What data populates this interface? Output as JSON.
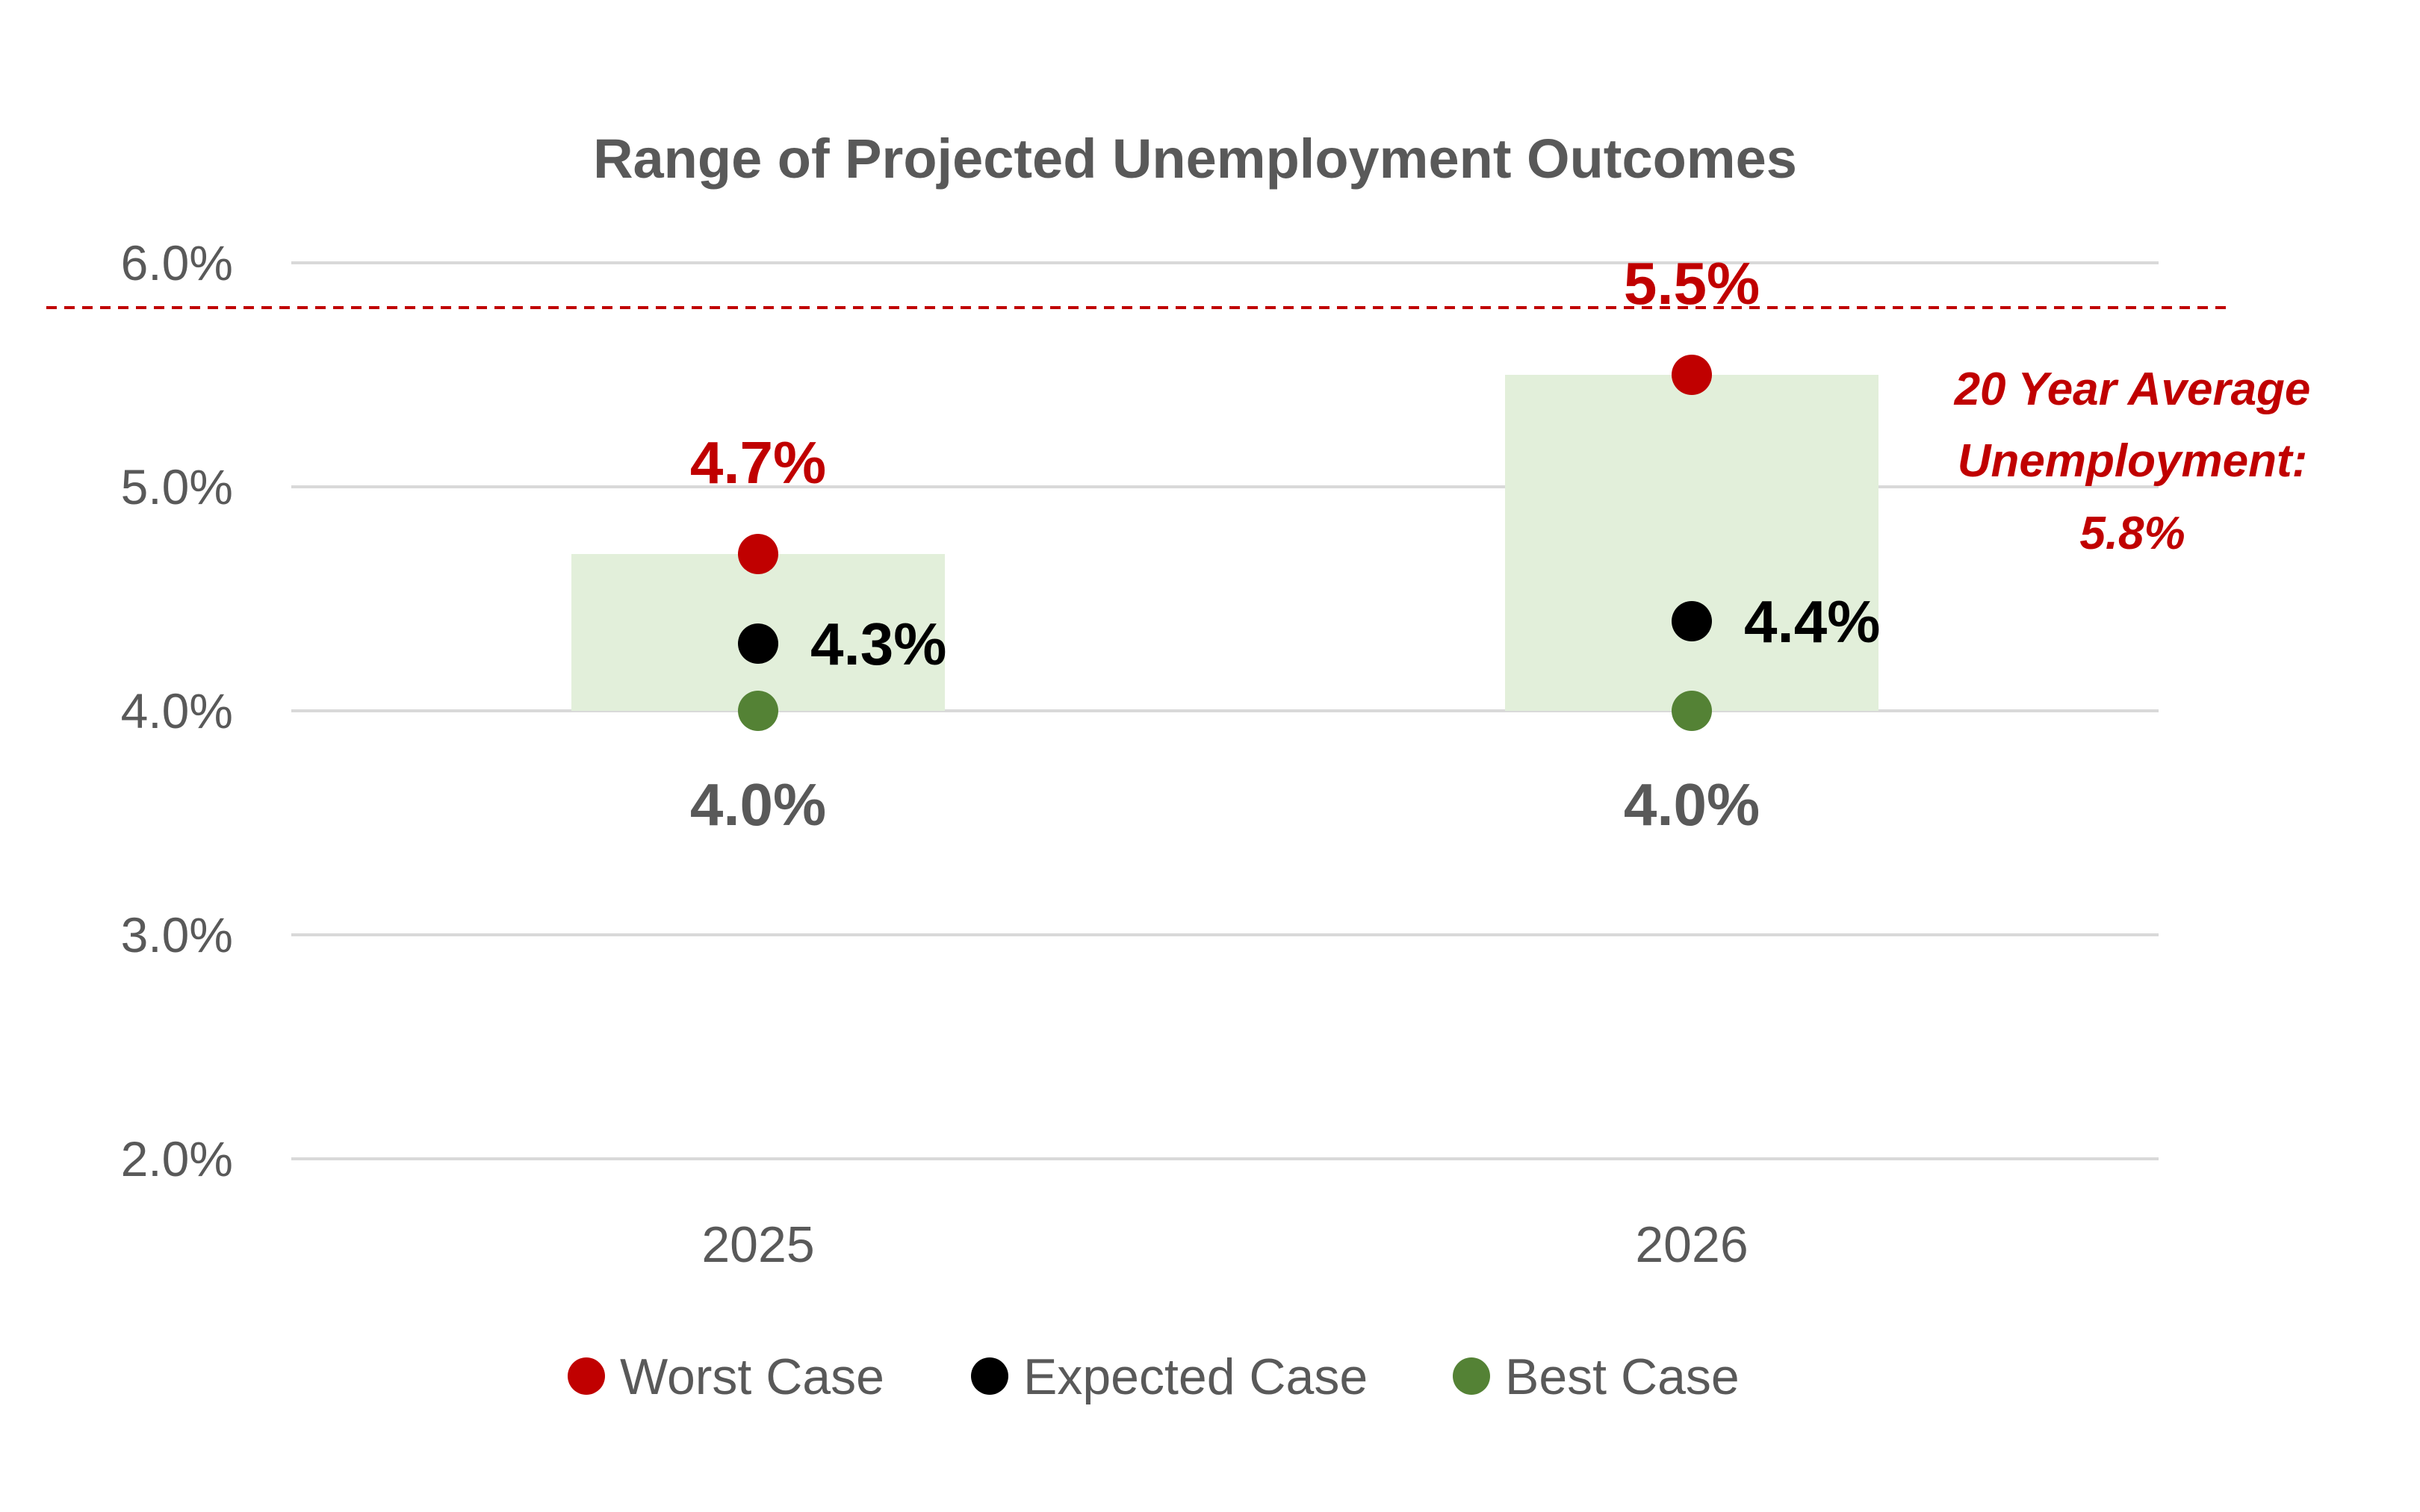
{
  "chart_data": {
    "type": "scatter",
    "title": "Range of Projected Unemployment Outcomes",
    "categories": [
      "2025",
      "2026"
    ],
    "ylim": [
      2.0,
      6.0
    ],
    "yticks": [
      2.0,
      3.0,
      4.0,
      5.0,
      6.0
    ],
    "ytick_labels": [
      "2.0%",
      "3.0%",
      "4.0%",
      "5.0%",
      "6.0%"
    ],
    "grid": true,
    "series": [
      {
        "name": "Worst Case",
        "values": [
          4.7,
          5.5
        ],
        "labels": [
          "4.7%",
          "5.5%"
        ],
        "label_position": "above"
      },
      {
        "name": "Expected Case",
        "values": [
          4.3,
          4.4
        ],
        "labels": [
          "4.3%",
          "4.4%"
        ],
        "label_position": "right"
      },
      {
        "name": "Best Case",
        "values": [
          4.0,
          4.0
        ],
        "labels": [
          "4.0%",
          "4.0%"
        ],
        "label_position": "below"
      }
    ],
    "range_bars": {
      "low_series": "Best Case",
      "high_series": "Worst Case"
    },
    "reference_line": {
      "value": 5.8,
      "style": "dashed",
      "label_lines": [
        "20 Year Average",
        "Unemployment:",
        "5.8%"
      ]
    },
    "legend_position": "bottom"
  },
  "colors": {
    "worst": "#c00000",
    "expected": "#000000",
    "best": "#548235",
    "range_fill": "#e2efda",
    "gridline": "#d9d9d9",
    "axis_text": "#595959",
    "reference": "#c00000"
  }
}
